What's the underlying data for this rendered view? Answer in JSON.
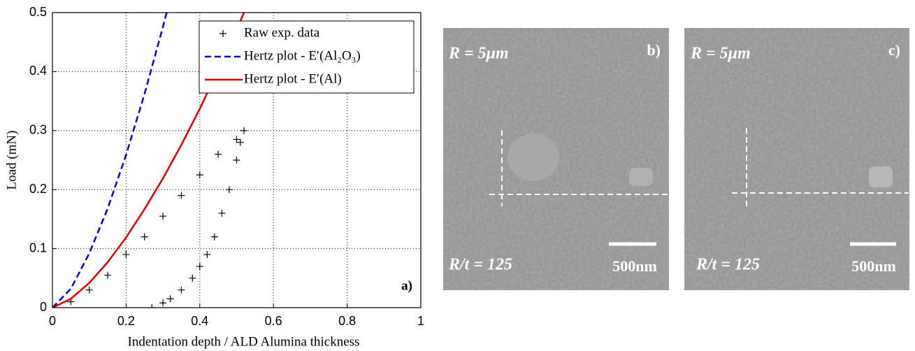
{
  "chart_data": {
    "type": "line",
    "xlabel": "Indentation depth / ALD Alumina thickness",
    "ylabel": "Load (mN)",
    "panel_label": "a)",
    "xlim": [
      0,
      1
    ],
    "ylim": [
      0,
      0.5
    ],
    "xticks": [
      0,
      0.2,
      0.4,
      0.6,
      0.8,
      1
    ],
    "yticks": [
      0,
      0.1,
      0.2,
      0.3,
      0.4,
      0.5
    ],
    "grid": true,
    "legend": "top-right",
    "series": [
      {
        "name": "Raw exp. data",
        "color": "#000000",
        "marker": "+",
        "x": [
          0,
          0.05,
          0.1,
          0.15,
          0.2,
          0.25,
          0.3,
          0.35,
          0.4,
          0.45,
          0.5,
          0.52,
          0.51,
          0.5,
          0.48,
          0.46,
          0.44,
          0.42,
          0.4,
          0.38,
          0.35,
          0.32,
          0.3,
          0.27
        ],
        "values": [
          0,
          0.01,
          0.03,
          0.055,
          0.09,
          0.12,
          0.155,
          0.19,
          0.225,
          0.26,
          0.285,
          0.3,
          0.28,
          0.25,
          0.2,
          0.16,
          0.12,
          0.09,
          0.07,
          0.05,
          0.03,
          0.015,
          0.008,
          0
        ]
      },
      {
        "name": "Hertz plot - E′(Al₂O₃)",
        "color": "#0000dd",
        "dash": true,
        "x": [
          0,
          0.05,
          0.1,
          0.15,
          0.2,
          0.25,
          0.3,
          0.31
        ],
        "values": [
          0,
          0.032,
          0.092,
          0.168,
          0.259,
          0.362,
          0.476,
          0.5
        ]
      },
      {
        "name": "Hertz plot - E′(Al)",
        "color": "#dd0000",
        "x": [
          0,
          0.05,
          0.1,
          0.15,
          0.2,
          0.25,
          0.3,
          0.35,
          0.4,
          0.45,
          0.5,
          0.52
        ],
        "values": [
          0,
          0.015,
          0.042,
          0.077,
          0.119,
          0.167,
          0.219,
          0.276,
          0.337,
          0.403,
          0.471,
          0.5
        ]
      }
    ]
  },
  "images": [
    {
      "label": "b)",
      "radius": "R = 5μm",
      "ratio": "R/t = 125",
      "scale": "500nm"
    },
    {
      "label": "c)",
      "radius": "R = 5μm",
      "ratio": "R/t = 125",
      "scale": "500nm"
    }
  ]
}
